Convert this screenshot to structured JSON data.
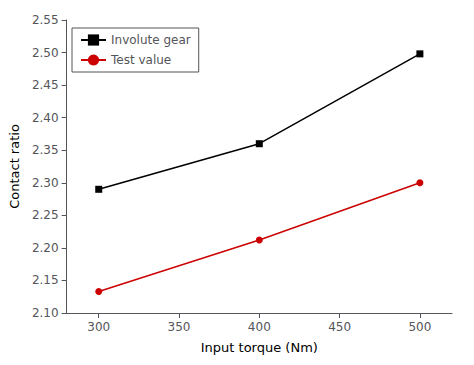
{
  "chart_data": {
    "type": "line",
    "x": [
      300,
      400,
      500
    ],
    "series": [
      {
        "name": "Involute gear",
        "color": "#000000",
        "marker": "square",
        "values": [
          2.29,
          2.36,
          2.498
        ]
      },
      {
        "name": "Test value",
        "color": "#cc0000",
        "marker": "circle",
        "values": [
          2.133,
          2.212,
          2.3
        ]
      }
    ],
    "xlabel": "Input torque (Nm)",
    "ylabel": "Contact ratio",
    "xlim": [
      280,
      520
    ],
    "xticks": [
      300,
      350,
      400,
      450,
      500
    ],
    "ylim": [
      2.1,
      2.55
    ],
    "yticks": [
      {
        "value": 2.1,
        "label": "2.10"
      },
      2.15,
      {
        "value": 2.2,
        "label": "2.20"
      },
      2.25,
      {
        "value": 2.3,
        "label": "2.30"
      },
      2.35,
      {
        "value": 2.4,
        "label": "2.40"
      },
      2.45,
      {
        "value": 2.5,
        "label": "2.50"
      },
      2.55
    ],
    "legend": "upper left",
    "grid": false
  }
}
